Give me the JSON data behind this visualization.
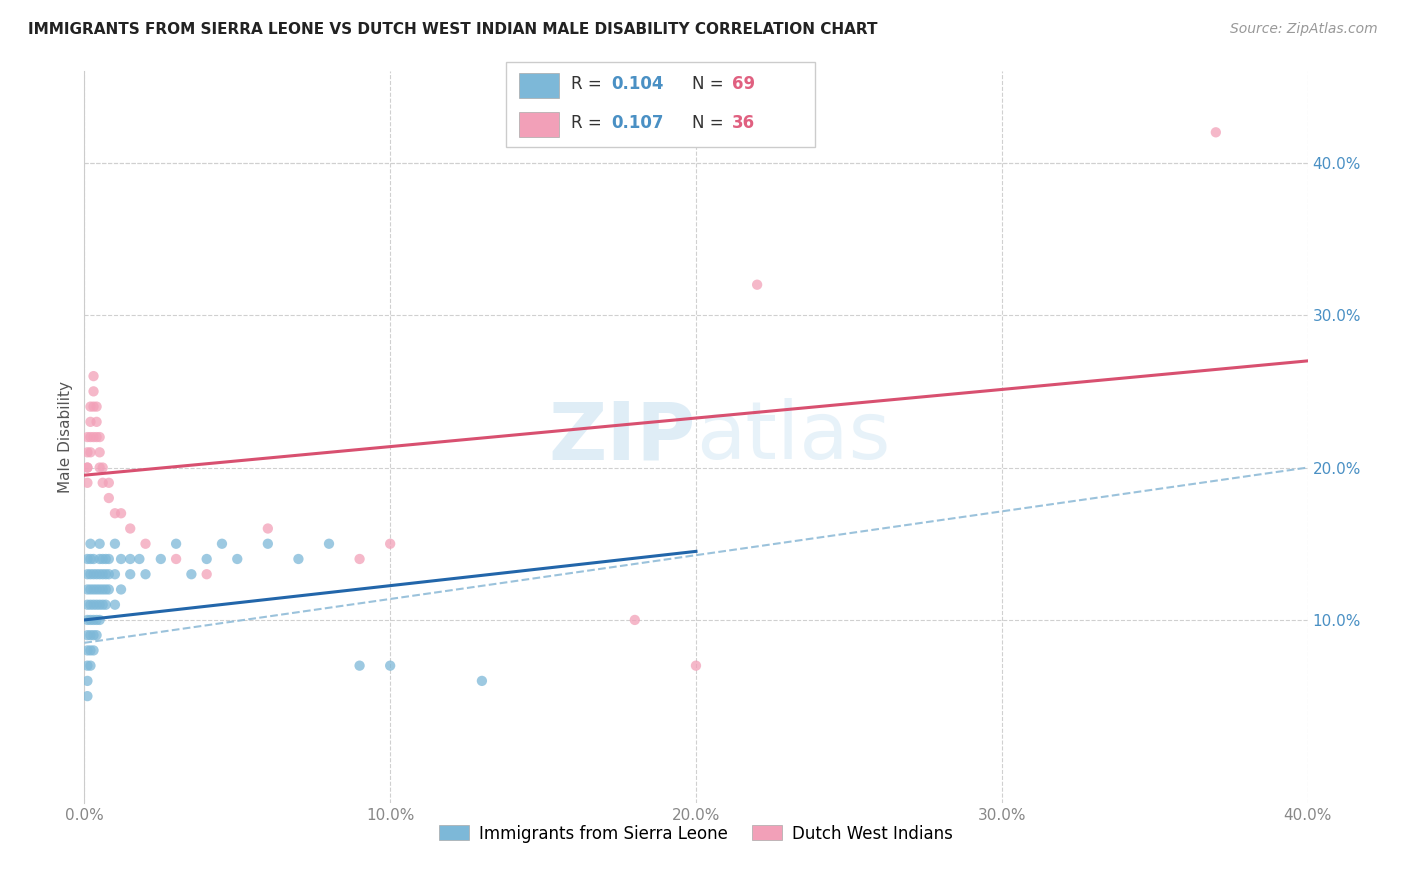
{
  "title": "IMMIGRANTS FROM SIERRA LEONE VS DUTCH WEST INDIAN MALE DISABILITY CORRELATION CHART",
  "source": "Source: ZipAtlas.com",
  "ylabel": "Male Disability",
  "xlim": [
    0.0,
    0.4
  ],
  "ylim": [
    -0.02,
    0.46
  ],
  "xticks": [
    0.0,
    0.1,
    0.2,
    0.3,
    0.4
  ],
  "yticks_right": [
    0.1,
    0.2,
    0.3,
    0.4
  ],
  "ytick_labels_right": [
    "10.0%",
    "20.0%",
    "30.0%",
    "40.0%"
  ],
  "xtick_labels": [
    "0.0%",
    "10.0%",
    "20.0%",
    "30.0%",
    "40.0%"
  ],
  "color_blue": "#7db8d8",
  "color_pink": "#f2a0b8",
  "color_blue_text": "#4a90c4",
  "color_pink_text": "#e06880",
  "line_blue": "#2266aa",
  "line_pink": "#d85070",
  "line_dashed_color": "#90bcd8",
  "watermark": "ZIPatlas",
  "sl_x": [
    0.001,
    0.001,
    0.001,
    0.001,
    0.001,
    0.001,
    0.001,
    0.001,
    0.001,
    0.001,
    0.002,
    0.002,
    0.002,
    0.002,
    0.002,
    0.002,
    0.002,
    0.002,
    0.002,
    0.003,
    0.003,
    0.003,
    0.003,
    0.003,
    0.003,
    0.003,
    0.004,
    0.004,
    0.004,
    0.004,
    0.004,
    0.005,
    0.005,
    0.005,
    0.005,
    0.005,
    0.005,
    0.006,
    0.006,
    0.006,
    0.006,
    0.007,
    0.007,
    0.007,
    0.007,
    0.008,
    0.008,
    0.008,
    0.01,
    0.01,
    0.01,
    0.012,
    0.012,
    0.015,
    0.015,
    0.018,
    0.02,
    0.025,
    0.03,
    0.035,
    0.04,
    0.045,
    0.05,
    0.06,
    0.07,
    0.08,
    0.09,
    0.1,
    0.13
  ],
  "sl_y": [
    0.08,
    0.09,
    0.1,
    0.11,
    0.12,
    0.13,
    0.14,
    0.06,
    0.07,
    0.05,
    0.1,
    0.11,
    0.12,
    0.13,
    0.08,
    0.09,
    0.07,
    0.14,
    0.15,
    0.1,
    0.11,
    0.12,
    0.13,
    0.14,
    0.09,
    0.08,
    0.1,
    0.11,
    0.12,
    0.13,
    0.09,
    0.1,
    0.11,
    0.12,
    0.13,
    0.14,
    0.15,
    0.11,
    0.12,
    0.13,
    0.14,
    0.11,
    0.12,
    0.13,
    0.14,
    0.12,
    0.13,
    0.14,
    0.11,
    0.13,
    0.15,
    0.12,
    0.14,
    0.13,
    0.14,
    0.14,
    0.13,
    0.14,
    0.15,
    0.13,
    0.14,
    0.15,
    0.14,
    0.15,
    0.14,
    0.15,
    0.07,
    0.07,
    0.06
  ],
  "dw_x": [
    0.001,
    0.001,
    0.001,
    0.001,
    0.001,
    0.002,
    0.002,
    0.002,
    0.002,
    0.003,
    0.003,
    0.003,
    0.003,
    0.004,
    0.004,
    0.004,
    0.005,
    0.005,
    0.005,
    0.006,
    0.006,
    0.008,
    0.008,
    0.01,
    0.012,
    0.015,
    0.02,
    0.03,
    0.04,
    0.06,
    0.09,
    0.1,
    0.18,
    0.2,
    0.22,
    0.37
  ],
  "dw_y": [
    0.2,
    0.21,
    0.22,
    0.19,
    0.2,
    0.22,
    0.23,
    0.24,
    0.21,
    0.24,
    0.25,
    0.26,
    0.22,
    0.23,
    0.24,
    0.22,
    0.21,
    0.22,
    0.2,
    0.19,
    0.2,
    0.18,
    0.19,
    0.17,
    0.17,
    0.16,
    0.15,
    0.14,
    0.13,
    0.16,
    0.14,
    0.15,
    0.1,
    0.07,
    0.32,
    0.42
  ]
}
